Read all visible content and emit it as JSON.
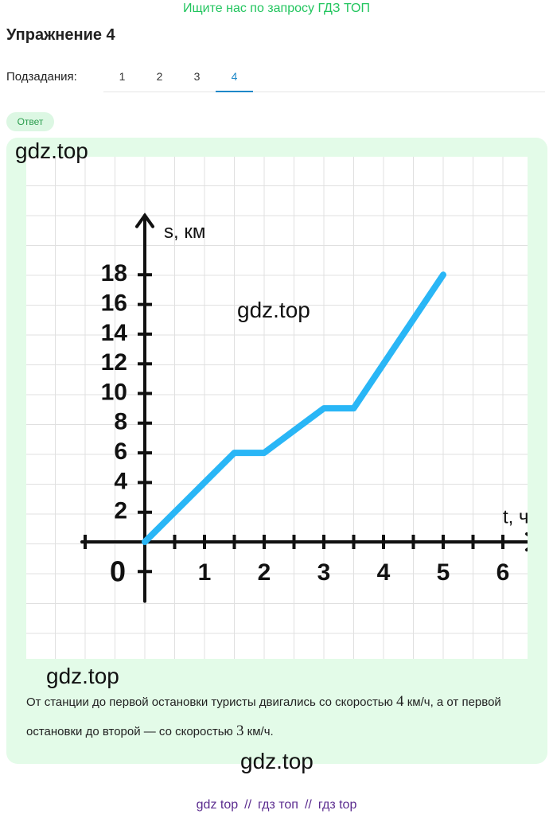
{
  "banner": "Ищите нас по запросу ГДЗ ТОП",
  "header": {
    "title": "Упражнение 4"
  },
  "subtasks": {
    "label": "Подзадания:",
    "tabs": [
      "1",
      "2",
      "3",
      "4"
    ],
    "active": 3
  },
  "badge": "Ответ",
  "watermarks": [
    "gdz.top",
    "gdz.top",
    "gdz.top",
    "gdz.top"
  ],
  "chart_data": {
    "type": "line",
    "y_label": "s, км",
    "x_label": "t, ч",
    "x": [
      0,
      1.5,
      2,
      3,
      3.5,
      5
    ],
    "series": [
      {
        "color": "#29b6f6",
        "values": [
          0,
          6,
          6,
          9,
          9,
          18
        ]
      }
    ],
    "xlim": [
      -1,
      6.4
    ],
    "ylim": [
      -4,
      22
    ],
    "xticks": [
      0,
      1,
      2,
      3,
      4,
      5,
      6
    ],
    "xticks_minor": [
      -1,
      0.5,
      1.5,
      2.5,
      3.5,
      4.5,
      5.5
    ],
    "yticks": [
      2,
      4,
      6,
      8,
      10,
      12,
      14,
      16,
      18
    ],
    "yticks_minor": [
      -2,
      0
    ]
  },
  "answer": [
    "От станции до первой остановки туристы двигались со скоростью ",
    "4",
    " км/ч, а от первой остановки до второй — со скоростью ",
    "3",
    " км/ч."
  ],
  "footer": [
    "gdz top",
    "//",
    "гдз топ",
    "//",
    "гдз top"
  ]
}
